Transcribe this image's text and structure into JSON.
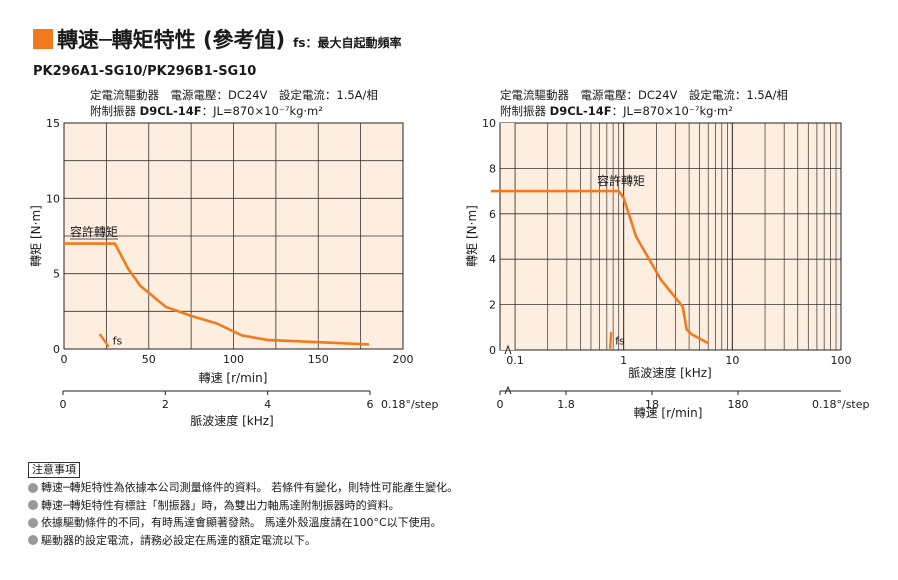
{
  "title": {
    "main": "轉速─轉矩特性 (參考值)",
    "sub": "fs：最大自起動頻率",
    "accent_color": "#f07a1d"
  },
  "model": "PK296A1-SG10/PK296B1-SG10",
  "conditions": {
    "line1": "定電流驅動器　電源電壓：DC24V　設定電流：1.5A/相",
    "line2_prefix": "附制振器",
    "line2_model": "D9CL-14F",
    "line2_suffix": "：JL=870×10⁻⁷kg·m²"
  },
  "chart_data": [
    {
      "type": "line",
      "ylabel": "轉矩 [N·m]",
      "xlabel": "轉速 [r/min]",
      "x2label": "脈波速度 [kHz]",
      "x2_step_note": "0.18°/step",
      "xlim": [
        0,
        200
      ],
      "ylim": [
        0,
        15
      ],
      "x_ticks": [
        0,
        50,
        100,
        150,
        200
      ],
      "x_tick_labels": [
        "0",
        "50",
        "100",
        "150",
        "200"
      ],
      "y_ticks": [
        0,
        5,
        10,
        15
      ],
      "y_tick_labels": [
        "0",
        "5",
        "10",
        "15"
      ],
      "x2_ticks": [
        0,
        2,
        4,
        6
      ],
      "x2_tick_labels": [
        "0",
        "2",
        "4",
        "6"
      ],
      "grid": true,
      "background_color": "#fdeee0",
      "line_color": "#f07a1d",
      "series": [
        {
          "name": "容許轉矩",
          "x": [
            0,
            30,
            38,
            45,
            60,
            75,
            90,
            105,
            120,
            150,
            180
          ],
          "y": [
            7,
            7,
            5.3,
            4.2,
            2.8,
            2.2,
            1.7,
            0.9,
            0.6,
            0.45,
            0.3
          ]
        }
      ],
      "fs_label": "fs",
      "fs_x": 24
    },
    {
      "type": "line",
      "ylabel": "轉矩 [N·m]",
      "xlabel": "脈波速度 [kHz]",
      "x2label": "轉速 [r/min]",
      "x2_step_note": "0.18°/step",
      "x_scale": "log",
      "xlim": [
        0.01,
        100
      ],
      "ylim": [
        0,
        10
      ],
      "x_ticks": [
        0.1,
        1,
        10,
        100
      ],
      "x_tick_labels": [
        "0.1",
        "1",
        "10",
        "100"
      ],
      "y_ticks": [
        0,
        2,
        4,
        6,
        8,
        10
      ],
      "y_tick_labels": [
        "0",
        "2",
        "4",
        "6",
        "8",
        "10"
      ],
      "x2_ticks": [
        0,
        1.8,
        18,
        180
      ],
      "x2_tick_labels": [
        "0",
        "1.8",
        "18",
        "180"
      ],
      "grid": true,
      "background_color": "#fdeee0",
      "line_color": "#f07a1d",
      "series": [
        {
          "name": "容許轉矩",
          "x": [
            0.06,
            0.5,
            0.9,
            1.0,
            1.3,
            2.2,
            3.5,
            3.8,
            4.2,
            6.0
          ],
          "y": [
            7,
            7,
            7,
            6.7,
            5.0,
            3.1,
            1.9,
            0.9,
            0.7,
            0.3
          ]
        }
      ],
      "fs_label": "fs",
      "fs_x": 0.8
    }
  ],
  "notes": {
    "heading": "注意事項",
    "items": [
      "轉速─轉矩特性為依據本公司測量條件的資料。 若條件有變化，則特性可能產生變化。",
      "轉速─轉矩特性有標註「制振器」時，為雙出力軸馬達附制振器時的資料。",
      "依據驅動條件的不同，有時馬達會顯著發熱。 馬達外殼溫度請在100°C以下使用。",
      "驅動器的設定電流，請務必設定在馬達的額定電流以下。"
    ]
  }
}
